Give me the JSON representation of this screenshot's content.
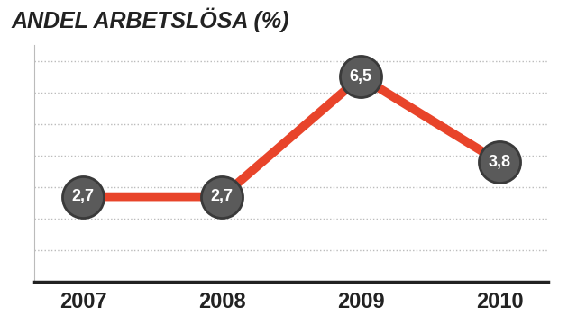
{
  "chart_data": {
    "type": "line",
    "title": "ANDEL ARBETSLÖSA (%)",
    "categories": [
      "2007",
      "2008",
      "2009",
      "2010"
    ],
    "values": [
      2.7,
      2.7,
      6.5,
      3.8
    ],
    "value_labels": [
      "2,7",
      "2,7",
      "6,5",
      "3,8"
    ],
    "color": "#e8442a",
    "marker": "o",
    "line_style": "solid",
    "ylim": [
      0,
      7.5
    ],
    "yticks": [
      0,
      1,
      2,
      3,
      4,
      5,
      6,
      7
    ],
    "grid": true,
    "data_labels": true,
    "tick_labels": "x"
  }
}
